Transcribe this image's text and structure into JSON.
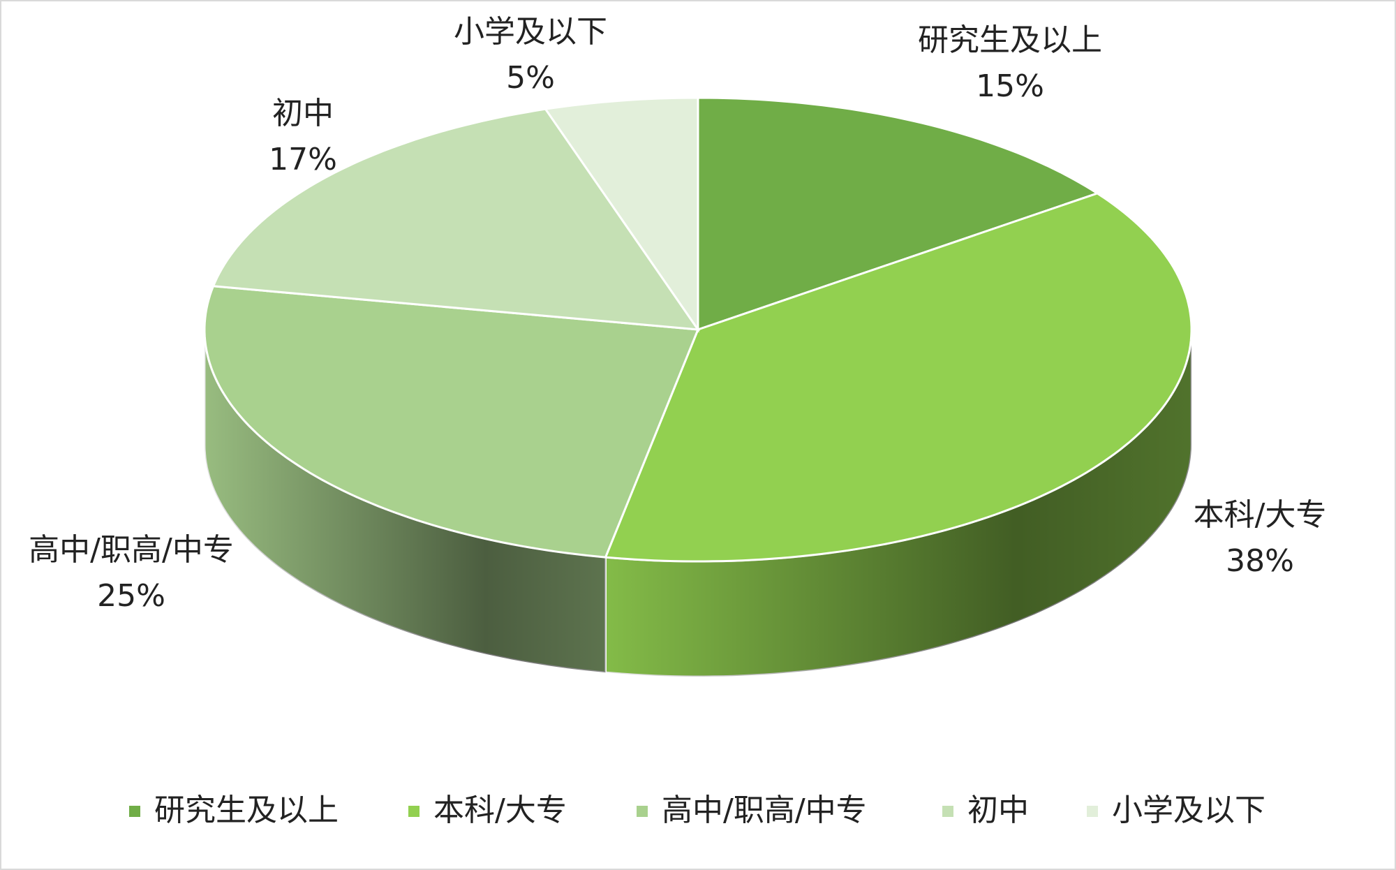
{
  "chart_data": {
    "type": "pie3d",
    "categories": [
      "研究生及以上",
      "本科/大专",
      "高中/职高/中专",
      "初中",
      "小学及以下"
    ],
    "values": [
      15,
      38,
      25,
      17,
      5
    ],
    "value_labels": [
      "15%",
      "38%",
      "25%",
      "17%",
      "5%"
    ],
    "colors": [
      "#70ad47",
      "#92d050",
      "#a9d18e",
      "#c5e0b4",
      "#e2efda"
    ],
    "legend": "bottom"
  }
}
